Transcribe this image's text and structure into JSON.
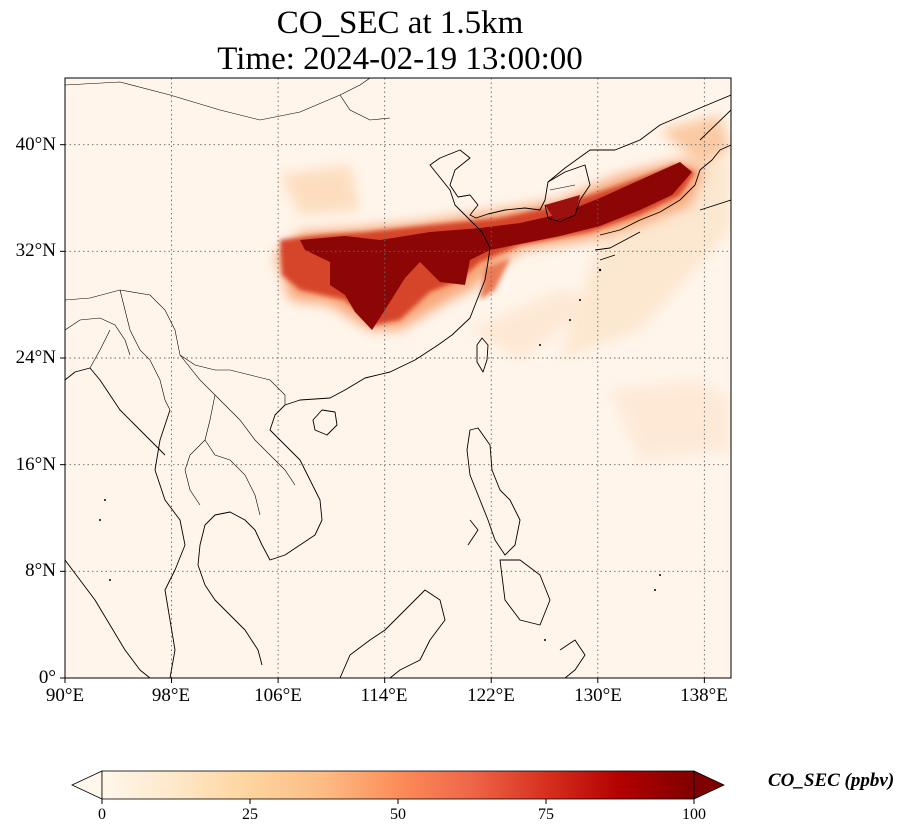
{
  "title": {
    "line1": "CO_SEC at 1.5km",
    "line2": "Time: 2024-02-19 13:00:00"
  },
  "map": {
    "extent": {
      "lon": [
        90,
        140
      ],
      "lat": [
        0,
        45
      ]
    },
    "grid": "dotted",
    "lon_ticks": [
      "90°E",
      "98°E",
      "106°E",
      "114°E",
      "122°E",
      "130°E",
      "138°E"
    ],
    "lat_ticks": [
      "0°",
      "8°N",
      "16°N",
      "24°N",
      "32°N",
      "40°N"
    ],
    "background_color": "#fff5eb",
    "features": [
      "coastlines",
      "country borders"
    ]
  },
  "colorbar": {
    "label": "CO_SEC (ppbv)",
    "colormap": "OrRd",
    "colors": [
      "#fff7ec",
      "#fee8c8",
      "#fdd49e",
      "#fdbb84",
      "#fc8d59",
      "#ef6548",
      "#d7301f",
      "#b30000",
      "#7f0000"
    ],
    "ticks": [
      "0",
      "25",
      "50",
      "75",
      "100"
    ],
    "range": [
      0,
      100
    ],
    "extend": "both"
  }
}
